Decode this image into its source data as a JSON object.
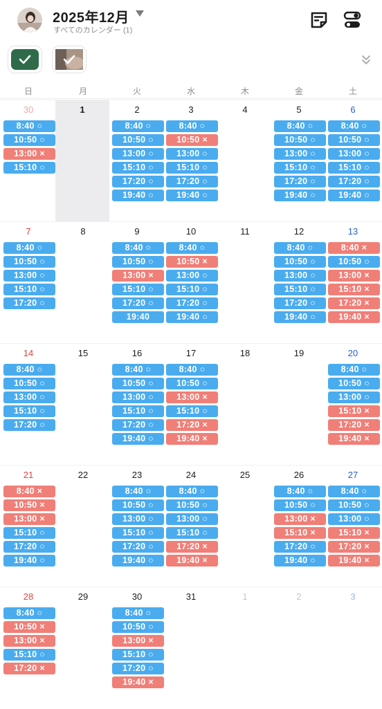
{
  "header": {
    "title": "2025年12月",
    "subtitle": "すべてのカレンダー (1)",
    "icons": [
      "avatar",
      "caret-down-icon",
      "note-icon",
      "toggle-settings-icon"
    ]
  },
  "filters": [
    {
      "name": "calendar-filter-green",
      "color": "#2f6b4a",
      "checked": true
    },
    {
      "name": "calendar-filter-photo",
      "color": "#9a8679",
      "checked": true
    }
  ],
  "weekdays": [
    "日",
    "月",
    "火",
    "水",
    "木",
    "金",
    "土"
  ],
  "colors": {
    "available": "#4aacef",
    "unavailable": "#f07f78",
    "sunday": "#e0443e",
    "saturday": "#1f5fd6",
    "today_bg": "#ececee"
  },
  "weeks": [
    [
      {
        "day": "30",
        "outside": true,
        "slots": [
          [
            "8:40 ○",
            "ok"
          ],
          [
            "10:50 ○",
            "ok"
          ],
          [
            "13:00 ×",
            "ng"
          ],
          [
            "15:10 ○",
            "ok"
          ]
        ]
      },
      {
        "day": "1",
        "today": true,
        "slots": []
      },
      {
        "day": "2",
        "slots": [
          [
            "8:40 ○",
            "ok"
          ],
          [
            "10:50 ○",
            "ok"
          ],
          [
            "13:00 ○",
            "ok"
          ],
          [
            "15:10 ○",
            "ok"
          ],
          [
            "17:20 ○",
            "ok"
          ],
          [
            "19:40 ○",
            "ok"
          ]
        ]
      },
      {
        "day": "3",
        "slots": [
          [
            "8:40 ○",
            "ok"
          ],
          [
            "10:50 ×",
            "ng"
          ],
          [
            "13:00 ○",
            "ok"
          ],
          [
            "15:10 ○",
            "ok"
          ],
          [
            "17:20 ○",
            "ok"
          ],
          [
            "19:40 ○",
            "ok"
          ]
        ]
      },
      {
        "day": "4",
        "slots": []
      },
      {
        "day": "5",
        "slots": [
          [
            "8:40 ○",
            "ok"
          ],
          [
            "10:50 ○",
            "ok"
          ],
          [
            "13:00 ○",
            "ok"
          ],
          [
            "15:10 ○",
            "ok"
          ],
          [
            "17:20 ○",
            "ok"
          ],
          [
            "19:40 ○",
            "ok"
          ]
        ]
      },
      {
        "day": "6",
        "slots": [
          [
            "8:40 ○",
            "ok"
          ],
          [
            "10:50 ○",
            "ok"
          ],
          [
            "13:00 ○",
            "ok"
          ],
          [
            "15:10 ○",
            "ok"
          ],
          [
            "17:20 ○",
            "ok"
          ],
          [
            "19:40 ○",
            "ok"
          ]
        ]
      }
    ],
    [
      {
        "day": "7",
        "slots": [
          [
            "8:40 ○",
            "ok"
          ],
          [
            "10:50 ○",
            "ok"
          ],
          [
            "13:00 ○",
            "ok"
          ],
          [
            "15:10 ○",
            "ok"
          ],
          [
            "17:20 ○",
            "ok"
          ]
        ]
      },
      {
        "day": "8",
        "slots": []
      },
      {
        "day": "9",
        "slots": [
          [
            "8:40 ○",
            "ok"
          ],
          [
            "10:50 ○",
            "ok"
          ],
          [
            "13:00 ×",
            "ng"
          ],
          [
            "15:10 ○",
            "ok"
          ],
          [
            "17:20 ○",
            "ok"
          ],
          [
            "19:40",
            "ok"
          ]
        ]
      },
      {
        "day": "10",
        "slots": [
          [
            "8:40 ○",
            "ok"
          ],
          [
            "10:50 ×",
            "ng"
          ],
          [
            "13:00 ○",
            "ok"
          ],
          [
            "15:10 ○",
            "ok"
          ],
          [
            "17:20 ○",
            "ok"
          ],
          [
            "19:40 ○",
            "ok"
          ]
        ]
      },
      {
        "day": "11",
        "slots": []
      },
      {
        "day": "12",
        "slots": [
          [
            "8:40 ○",
            "ok"
          ],
          [
            "10:50 ○",
            "ok"
          ],
          [
            "13:00 ○",
            "ok"
          ],
          [
            "15:10 ○",
            "ok"
          ],
          [
            "17:20 ○",
            "ok"
          ],
          [
            "19:40 ○",
            "ok"
          ]
        ]
      },
      {
        "day": "13",
        "slots": [
          [
            "8:40 ×",
            "ng"
          ],
          [
            "10:50 ○",
            "ok"
          ],
          [
            "13:00 ×",
            "ng"
          ],
          [
            "15:10 ×",
            "ng"
          ],
          [
            "17:20 ×",
            "ng"
          ],
          [
            "19:40 ×",
            "ng"
          ]
        ]
      }
    ],
    [
      {
        "day": "14",
        "slots": [
          [
            "8:40 ○",
            "ok"
          ],
          [
            "10:50 ○",
            "ok"
          ],
          [
            "13:00 ○",
            "ok"
          ],
          [
            "15:10 ○",
            "ok"
          ],
          [
            "17:20 ○",
            "ok"
          ]
        ]
      },
      {
        "day": "15",
        "slots": []
      },
      {
        "day": "16",
        "slots": [
          [
            "8:40 ○",
            "ok"
          ],
          [
            "10:50 ○",
            "ok"
          ],
          [
            "13:00 ○",
            "ok"
          ],
          [
            "15:10 ○",
            "ok"
          ],
          [
            "17:20 ○",
            "ok"
          ],
          [
            "19:40 ○",
            "ok"
          ]
        ]
      },
      {
        "day": "17",
        "slots": [
          [
            "8:40 ○",
            "ok"
          ],
          [
            "10:50 ○",
            "ok"
          ],
          [
            "13:00 ×",
            "ng"
          ],
          [
            "15:10 ○",
            "ok"
          ],
          [
            "17:20 ×",
            "ng"
          ],
          [
            "19:40 ×",
            "ng"
          ]
        ]
      },
      {
        "day": "18",
        "slots": []
      },
      {
        "day": "19",
        "slots": []
      },
      {
        "day": "20",
        "slots": [
          [
            "8:40 ○",
            "ok"
          ],
          [
            "10:50 ○",
            "ok"
          ],
          [
            "13:00 ○",
            "ok"
          ],
          [
            "15:10 ×",
            "ng"
          ],
          [
            "17:20 ×",
            "ng"
          ],
          [
            "19:40 ×",
            "ng"
          ]
        ]
      }
    ],
    [
      {
        "day": "21",
        "slots": [
          [
            "8:40 ×",
            "ng"
          ],
          [
            "10:50 ×",
            "ng"
          ],
          [
            "13:00 ×",
            "ng"
          ],
          [
            "15:10 ○",
            "ok"
          ],
          [
            "17:20 ○",
            "ok"
          ],
          [
            "19:40 ○",
            "ok"
          ]
        ]
      },
      {
        "day": "22",
        "slots": []
      },
      {
        "day": "23",
        "slots": [
          [
            "8:40 ○",
            "ok"
          ],
          [
            "10:50 ○",
            "ok"
          ],
          [
            "13:00 ○",
            "ok"
          ],
          [
            "15:10 ○",
            "ok"
          ],
          [
            "17:20 ○",
            "ok"
          ],
          [
            "19:40 ○",
            "ok"
          ]
        ]
      },
      {
        "day": "24",
        "slots": [
          [
            "8:40 ○",
            "ok"
          ],
          [
            "10:50 ○",
            "ok"
          ],
          [
            "13:00 ○",
            "ok"
          ],
          [
            "15:10 ○",
            "ok"
          ],
          [
            "17:20 ×",
            "ng"
          ],
          [
            "19:40 ×",
            "ng"
          ]
        ]
      },
      {
        "day": "25",
        "slots": []
      },
      {
        "day": "26",
        "slots": [
          [
            "8:40 ○",
            "ok"
          ],
          [
            "10:50 ○",
            "ok"
          ],
          [
            "13:00 ×",
            "ng"
          ],
          [
            "15:10 ×",
            "ng"
          ],
          [
            "17:20 ○",
            "ok"
          ],
          [
            "19:40 ○",
            "ok"
          ]
        ]
      },
      {
        "day": "27",
        "slots": [
          [
            "8:40 ○",
            "ok"
          ],
          [
            "10:50 ○",
            "ok"
          ],
          [
            "13:00 ○",
            "ok"
          ],
          [
            "15:10 ×",
            "ng"
          ],
          [
            "17:20 ×",
            "ng"
          ],
          [
            "19:40 ×",
            "ng"
          ]
        ]
      }
    ],
    [
      {
        "day": "28",
        "slots": [
          [
            "8:40 ○",
            "ok"
          ],
          [
            "10:50 ×",
            "ng"
          ],
          [
            "13:00 ×",
            "ng"
          ],
          [
            "15:10 ○",
            "ok"
          ],
          [
            "17:20 ×",
            "ng"
          ]
        ]
      },
      {
        "day": "29",
        "slots": []
      },
      {
        "day": "30",
        "slots": [
          [
            "8:40 ○",
            "ok"
          ],
          [
            "10:50 ○",
            "ok"
          ],
          [
            "13:00 ×",
            "ng"
          ],
          [
            "15:10 ○",
            "ok"
          ],
          [
            "17:20 ○",
            "ok"
          ],
          [
            "19:40 ×",
            "ng"
          ]
        ]
      },
      {
        "day": "31",
        "slots": []
      },
      {
        "day": "1",
        "outside": true,
        "slots": []
      },
      {
        "day": "2",
        "outside": true,
        "slots": []
      },
      {
        "day": "3",
        "outside": true,
        "slots": []
      }
    ]
  ]
}
